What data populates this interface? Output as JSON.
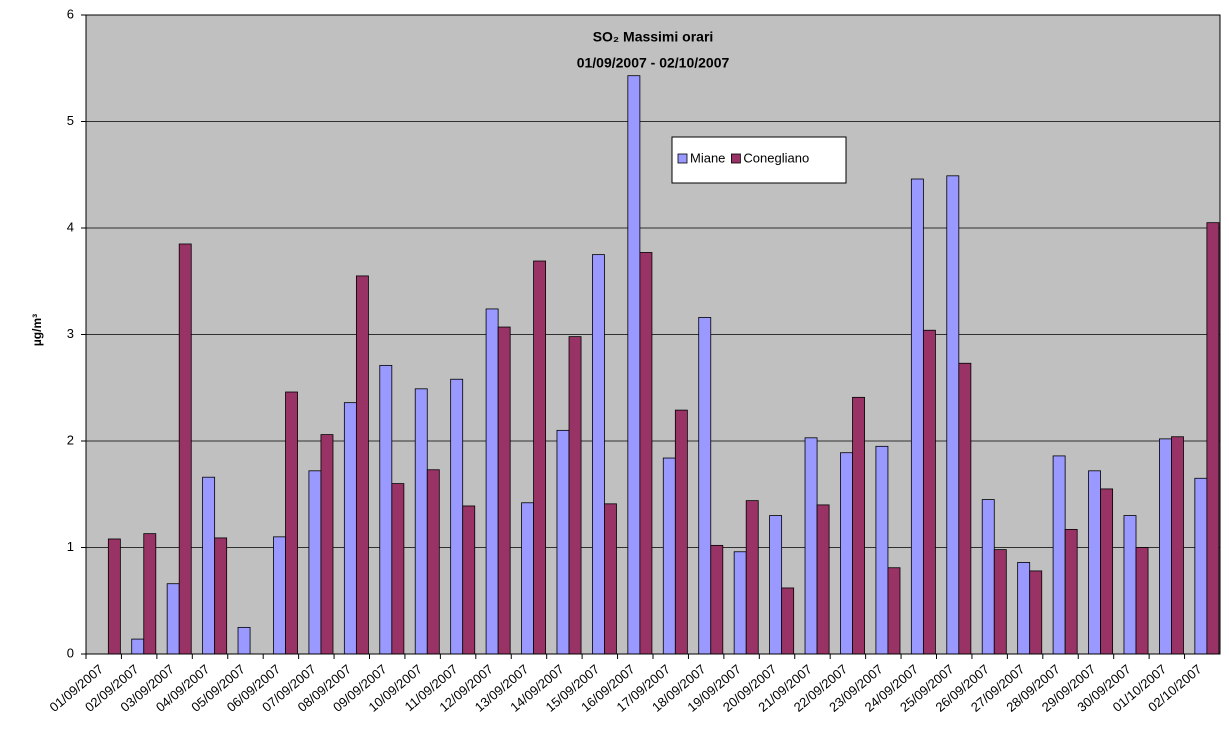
{
  "chart_data": {
    "type": "bar",
    "title": "SO₂ Massimi orari",
    "subtitle": "01/09/2007 - 02/10/2007",
    "y_label": "µg/m³",
    "categories": [
      "01/09/2007",
      "02/09/2007",
      "03/09/2007",
      "04/09/2007",
      "05/09/2007",
      "06/09/2007",
      "07/09/2007",
      "08/09/2007",
      "09/09/2007",
      "10/09/2007",
      "11/09/2007",
      "12/09/2007",
      "13/09/2007",
      "14/09/2007",
      "15/09/2007",
      "16/09/2007",
      "17/09/2007",
      "18/09/2007",
      "19/09/2007",
      "20/09/2007",
      "21/09/2007",
      "22/09/2007",
      "23/09/2007",
      "24/09/2007",
      "25/09/2007",
      "26/09/2007",
      "27/09/2007",
      "28/09/2007",
      "29/09/2007",
      "30/09/2007",
      "01/10/2007",
      "02/10/2007"
    ],
    "series": [
      {
        "name": "Miane",
        "color": "#9999ff",
        "values": [
          null,
          0.14,
          0.66,
          1.66,
          0.25,
          1.1,
          1.72,
          2.36,
          2.71,
          2.49,
          2.58,
          3.24,
          1.42,
          2.1,
          3.75,
          5.43,
          1.84,
          3.16,
          0.96,
          1.3,
          2.03,
          1.89,
          1.95,
          4.46,
          4.49,
          1.45,
          0.86,
          1.86,
          1.72,
          1.3,
          2.02,
          1.65
        ]
      },
      {
        "name": "Conegliano",
        "color": "#993366",
        "values": [
          1.08,
          1.13,
          3.85,
          1.09,
          null,
          2.46,
          2.06,
          3.55,
          1.6,
          1.73,
          1.39,
          3.07,
          3.69,
          2.98,
          1.41,
          3.77,
          2.29,
          1.02,
          1.44,
          0.62,
          1.4,
          2.41,
          0.81,
          3.04,
          2.73,
          0.98,
          0.78,
          1.17,
          1.55,
          1.0,
          2.04,
          4.05
        ]
      }
    ],
    "ylim": [
      0,
      6
    ],
    "yticks": [
      0,
      1,
      2,
      3,
      4,
      5,
      6
    ],
    "grid": true,
    "background": "#c0c0c0"
  }
}
